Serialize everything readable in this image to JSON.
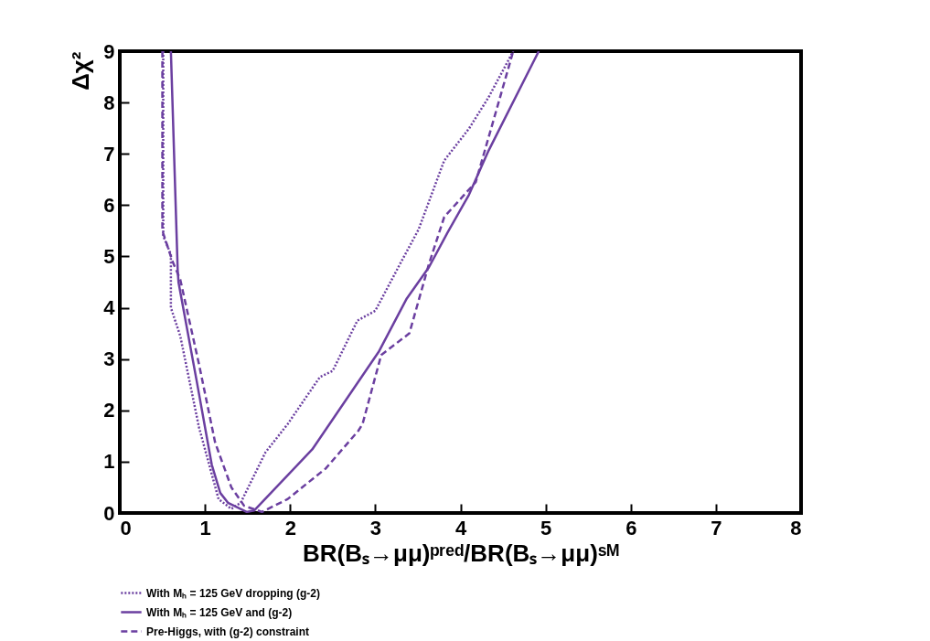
{
  "chart_data": {
    "type": "line",
    "xlabel": "BR(Bₛ→μμ)ᵖʳᵉᵈ/BR(Bₛ→μμ)ˢᴹ",
    "ylabel": "Δχ²",
    "xlim": [
      0,
      8
    ],
    "xticks": [
      0,
      1,
      2,
      3,
      4,
      5,
      6,
      7,
      8
    ],
    "ylim": [
      0,
      9
    ],
    "yticks": [
      0,
      1,
      2,
      3,
      4,
      5,
      6,
      7,
      8,
      9
    ],
    "grid": false,
    "legend": "bottom left",
    "marker": "none",
    "series": [
      {
        "name": "With Mₕ = 125 GeV dropping (g-2)",
        "color": "#6b3fa0",
        "line_style": "dotted",
        "x": [
          0.51,
          0.51,
          0.6,
          0.6,
          0.71,
          0.93,
          1.16,
          1.31,
          1.42,
          1.71,
          1.97,
          2.35,
          2.5,
          2.79,
          3.0,
          3.29,
          3.51,
          3.81,
          4.1,
          4.33,
          4.62
        ],
        "values": [
          9,
          5.4,
          5.04,
          4.0,
          3.45,
          1.67,
          0.27,
          0.08,
          0.2,
          1.18,
          1.73,
          2.65,
          2.77,
          3.75,
          3.94,
          4.85,
          5.53,
          6.87,
          7.49,
          8.1,
          9
        ]
      },
      {
        "name": "With Mₕ = 125 GeV and (g-2)",
        "color": "#6b3fa0",
        "line_style": "solid",
        "x": [
          0.6,
          0.68,
          0.69,
          0.9,
          1.08,
          1.18,
          1.27,
          1.49,
          1.58,
          2.26,
          3.04,
          3.37,
          3.63,
          3.85,
          4.1,
          4.33,
          4.92
        ],
        "values": [
          9,
          4.73,
          4.49,
          2.6,
          0.94,
          0.39,
          0.2,
          0.02,
          0.05,
          1.24,
          3.14,
          4.18,
          4.79,
          5.47,
          6.2,
          7.06,
          9
        ]
      },
      {
        "name": "Pre-Higgs, with (g-2) constraint",
        "color": "#6b3fa0",
        "line_style": "dashed",
        "x": [
          0.5,
          0.5,
          0.62,
          0.71,
          0.93,
          1.12,
          1.31,
          1.46,
          1.67,
          1.97,
          2.42,
          2.8,
          2.85,
          3.07,
          3.4,
          3.63,
          3.81,
          4.18,
          4.36,
          4.62
        ],
        "values": [
          9,
          5.5,
          4.9,
          4.55,
          2.9,
          1.37,
          0.5,
          0.14,
          0.02,
          0.27,
          0.87,
          1.6,
          1.73,
          3.08,
          3.5,
          4.85,
          5.77,
          6.45,
          7.49,
          9
        ]
      }
    ]
  }
}
